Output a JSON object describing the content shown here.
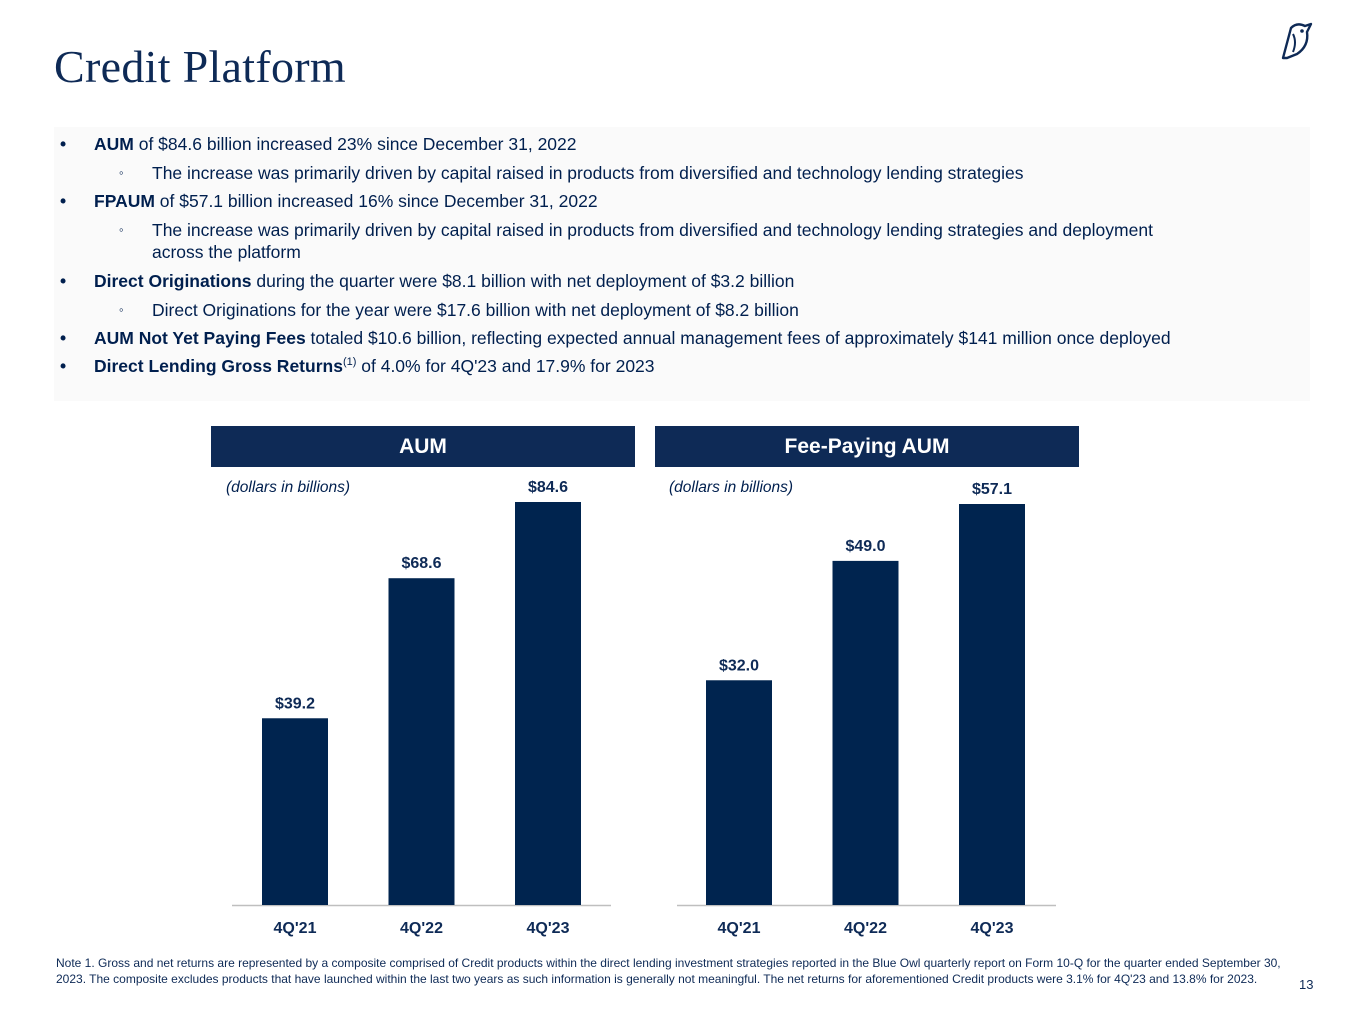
{
  "page": {
    "title": "Credit Platform",
    "page_number": "13"
  },
  "summary": {
    "b1": {
      "bold": "AUM",
      "rest": " of $84.6 billion increased 23% since December 31, 2022"
    },
    "b1_sub": "The increase was primarily driven by capital raised in products from diversified and technology lending strategies",
    "b2": {
      "bold": "FPAUM",
      "rest": " of $57.1 billion increased 16% since December 31, 2022"
    },
    "b2_sub_line1": "The increase was primarily driven by capital raised in products from diversified and technology lending strategies and deployment",
    "b2_sub_line2": "across the platform",
    "b3": {
      "bold": "Direct Originations",
      "rest": " during the quarter were $8.1 billion with net deployment of $3.2 billion"
    },
    "b3_sub": "Direct Originations for the year were $17.6 billion with net deployment of $8.2 billion",
    "b4": {
      "bold": "AUM Not Yet Paying Fees",
      "rest": " totaled $10.6 billion, reflecting expected annual management fees of approximately $141 million once deployed"
    },
    "b5": {
      "bold": "Direct Lending Gross Returns",
      "sup": "(1)",
      "rest": " of 4.0% for 4Q'23 and 17.9% for 2023"
    }
  },
  "chart_data": [
    {
      "type": "bar",
      "title": "AUM",
      "subtitle": "(dollars in billions)",
      "categories": [
        "4Q'21",
        "4Q'22",
        "4Q'23"
      ],
      "values": [
        39.2,
        68.6,
        84.6
      ],
      "value_labels": [
        "$39.2",
        "$68.6",
        "$84.6"
      ],
      "ylim": [
        0,
        84.6
      ],
      "grid": false,
      "color": "#00244f"
    },
    {
      "type": "bar",
      "title": "Fee-Paying AUM",
      "subtitle": "(dollars in billions)",
      "categories": [
        "4Q'21",
        "4Q'22",
        "4Q'23"
      ],
      "values": [
        32.0,
        49.0,
        57.1
      ],
      "value_labels": [
        "$32.0",
        "$49.0",
        "$57.1"
      ],
      "ylim": [
        0,
        57.1
      ],
      "grid": false,
      "color": "#00244f"
    }
  ],
  "footnote": "Note 1. Gross and net returns are represented by a composite comprised of Credit products within the direct lending investment strategies reported in the Blue Owl quarterly report on Form 10-Q for the quarter ended September 30, 2023. The composite excludes products that have launched within the last two years as such information is generally not meaningful. The net returns for aforementioned Credit products were 3.1% for 4Q'23 and 13.8% for 2023."
}
